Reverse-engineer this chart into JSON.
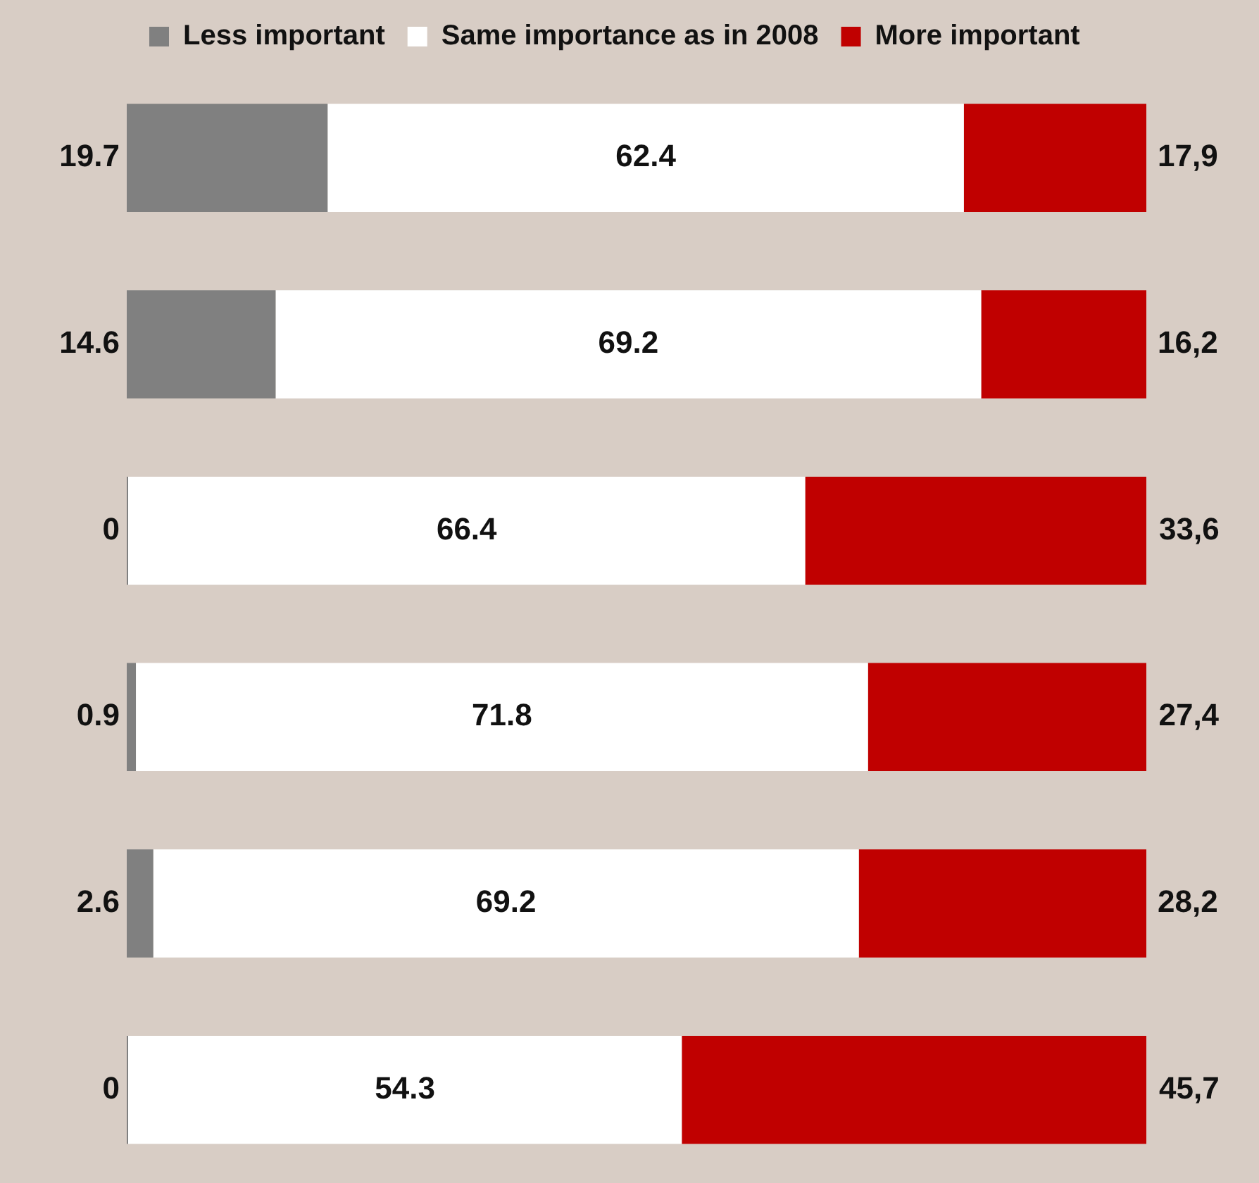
{
  "chart_data": {
    "type": "bar",
    "orientation": "horizontal",
    "stacked": true,
    "categories": [
      null,
      null,
      null,
      null,
      null,
      null
    ],
    "series": [
      {
        "name": "Less important",
        "color": "#808080",
        "values": [
          19.7,
          14.6,
          0,
          0.9,
          2.6,
          0
        ],
        "value_labels": [
          "19.7",
          "14.6",
          "0",
          "0.9",
          "2.6",
          "0"
        ]
      },
      {
        "name": "Same importance as in 2008",
        "color": "#ffffff",
        "values": [
          62.4,
          69.2,
          66.4,
          71.8,
          69.2,
          54.3
        ],
        "value_labels": [
          "62.4",
          "69.2",
          "66.4",
          "71.8",
          "69.2",
          "54.3"
        ]
      },
      {
        "name": "More important",
        "color": "#c00000",
        "values": [
          17.9,
          16.2,
          33.6,
          27.4,
          28.2,
          45.7
        ],
        "value_labels": [
          "17,9",
          "16,2",
          "33,6",
          "27,4",
          "28,2",
          "45,7"
        ]
      }
    ],
    "xlim": [
      0,
      100
    ],
    "tick_labels": false,
    "legend": "top left"
  }
}
